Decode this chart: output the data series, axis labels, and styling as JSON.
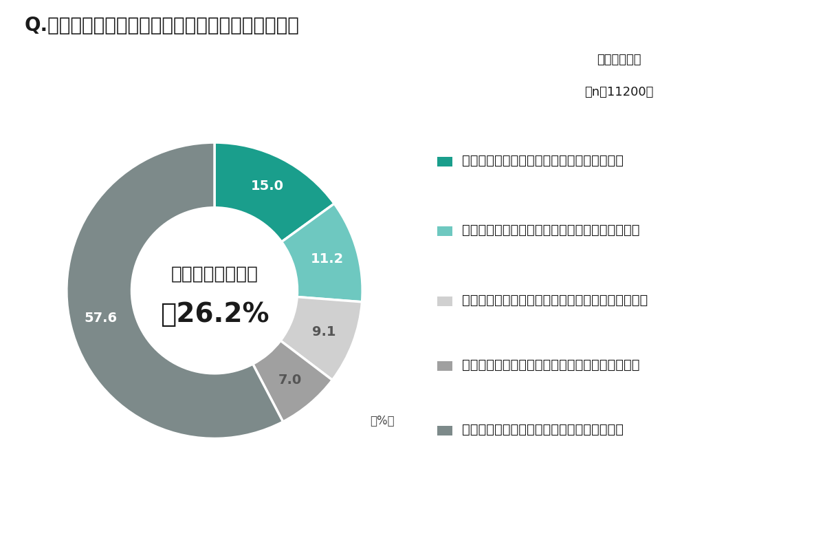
{
  "title": "Q.自転車乗用中、ヘルメットを着用していますか？",
  "subtitle_line1": "自転車利用者",
  "subtitle_line2": "（n＝11200）",
  "center_text_line1": "ヘルメット着用率",
  "center_text_line2": "計26.2%",
  "values": [
    15.0,
    11.2,
    9.1,
    7.0,
    57.6
  ],
  "colors": [
    "#1a9e8c",
    "#6ec8c0",
    "#d0d0d0",
    "#a0a0a0",
    "#7d8a8a"
  ],
  "labels": [
    "ヘルメットを持っていて、常に着用している",
    "ヘルメットを持っていて、おおむね着用している",
    "ヘルメットは持っているが、あまり着用していない",
    "ヘルメットは持っているが、全く着用していない",
    "ヘルメットを持っておらず、着用していない"
  ],
  "wedge_labels": [
    "15.0",
    "11.2",
    "9.1",
    "7.0",
    "57.6"
  ],
  "wedge_label_colors": [
    "white",
    "white",
    "#555555",
    "#555555",
    "white"
  ],
  "background_color": "#ffffff",
  "text_color": "#1a1a1a"
}
